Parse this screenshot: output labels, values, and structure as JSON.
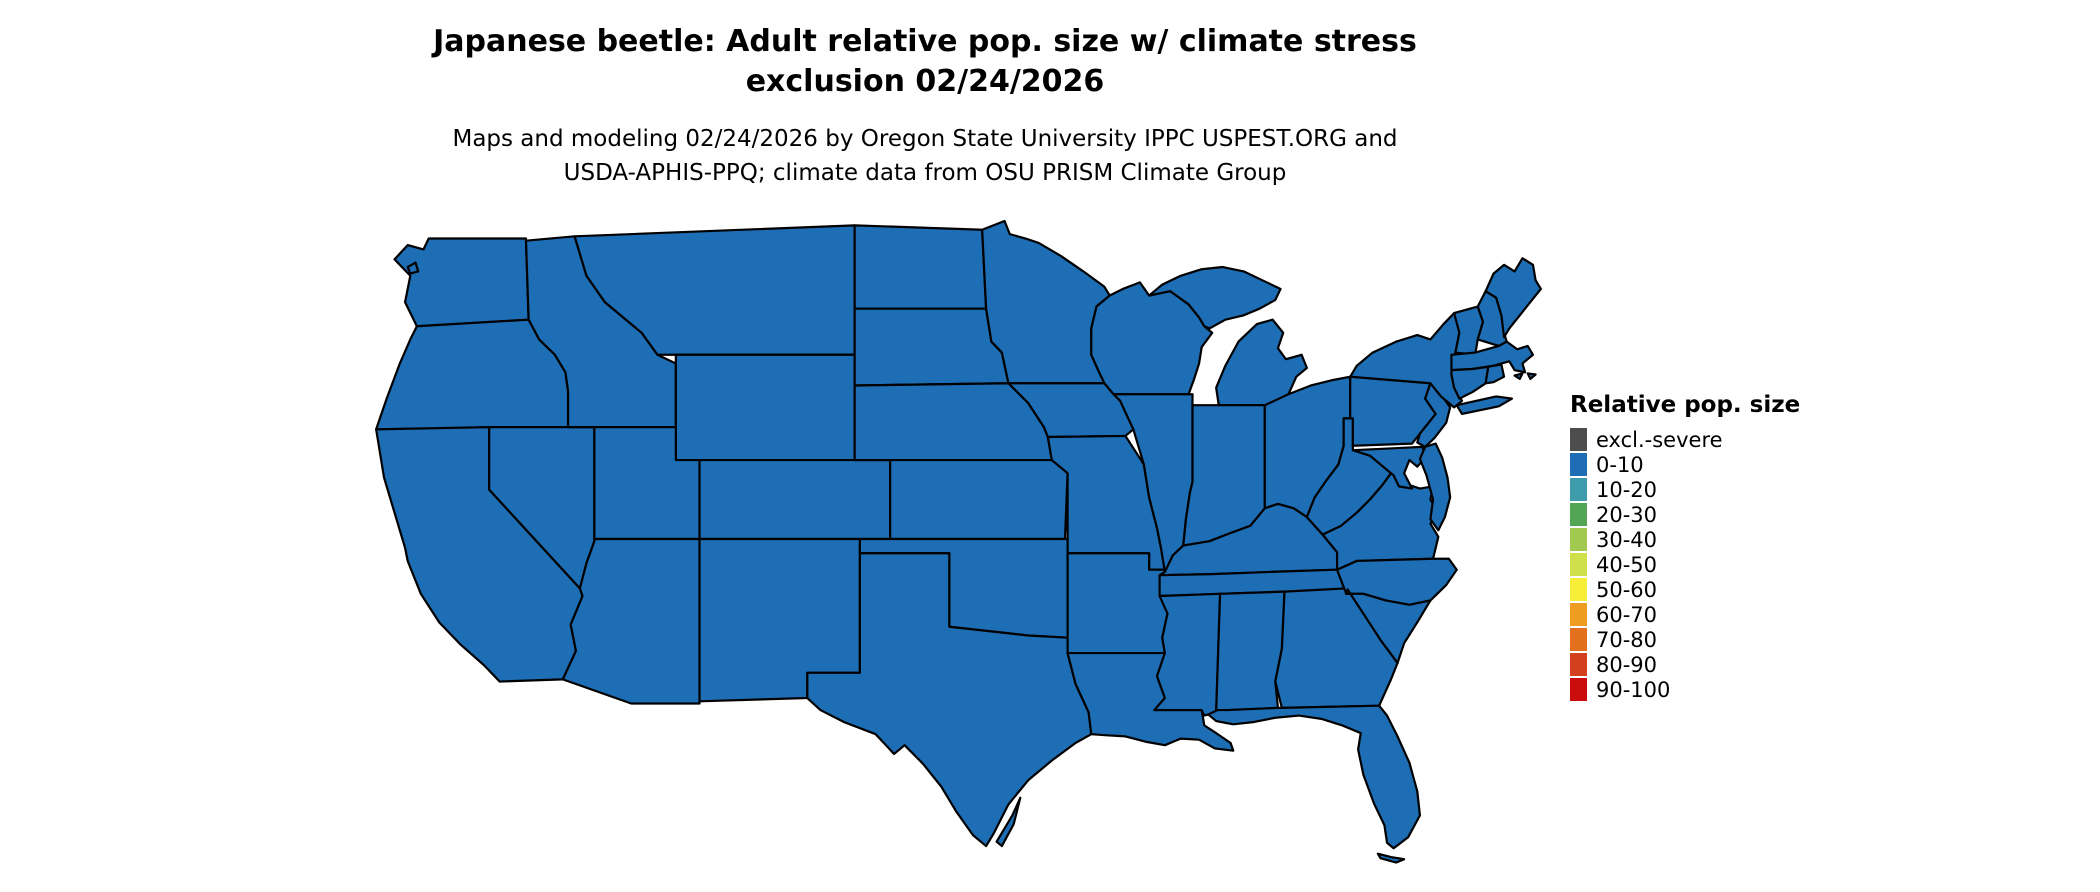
{
  "title": {
    "line1": "Japanese beetle: Adult relative pop. size w/ climate stress",
    "line2": "exclusion 02/24/2026"
  },
  "subtitle": {
    "line1": "Maps and modeling 02/24/2026 by Oregon State University IPPC USPEST.ORG and",
    "line2": "USDA-APHIS-PPQ; climate data from OSU PRISM Climate Group"
  },
  "legend": {
    "title": "Relative pop. size",
    "entries": [
      {
        "label": "excl.-severe",
        "color": "#4d4d4d"
      },
      {
        "label": "0-10",
        "color": "#1d6eb5"
      },
      {
        "label": "10-20",
        "color": "#3d9bab"
      },
      {
        "label": "20-30",
        "color": "#53a556"
      },
      {
        "label": "30-40",
        "color": "#a2c94f"
      },
      {
        "label": "40-50",
        "color": "#cfe04a"
      },
      {
        "label": "50-60",
        "color": "#f6ee38"
      },
      {
        "label": "60-70",
        "color": "#ef9d20"
      },
      {
        "label": "70-80",
        "color": "#e2701c"
      },
      {
        "label": "80-90",
        "color": "#d2401e"
      },
      {
        "label": "90-100",
        "color": "#cb0c0c"
      }
    ]
  },
  "map": {
    "region": "contiguous United States",
    "all_regions_class": "0-10",
    "state_fill": "#1d6eb5",
    "border_color": "#000000",
    "background": "#ffffff"
  }
}
